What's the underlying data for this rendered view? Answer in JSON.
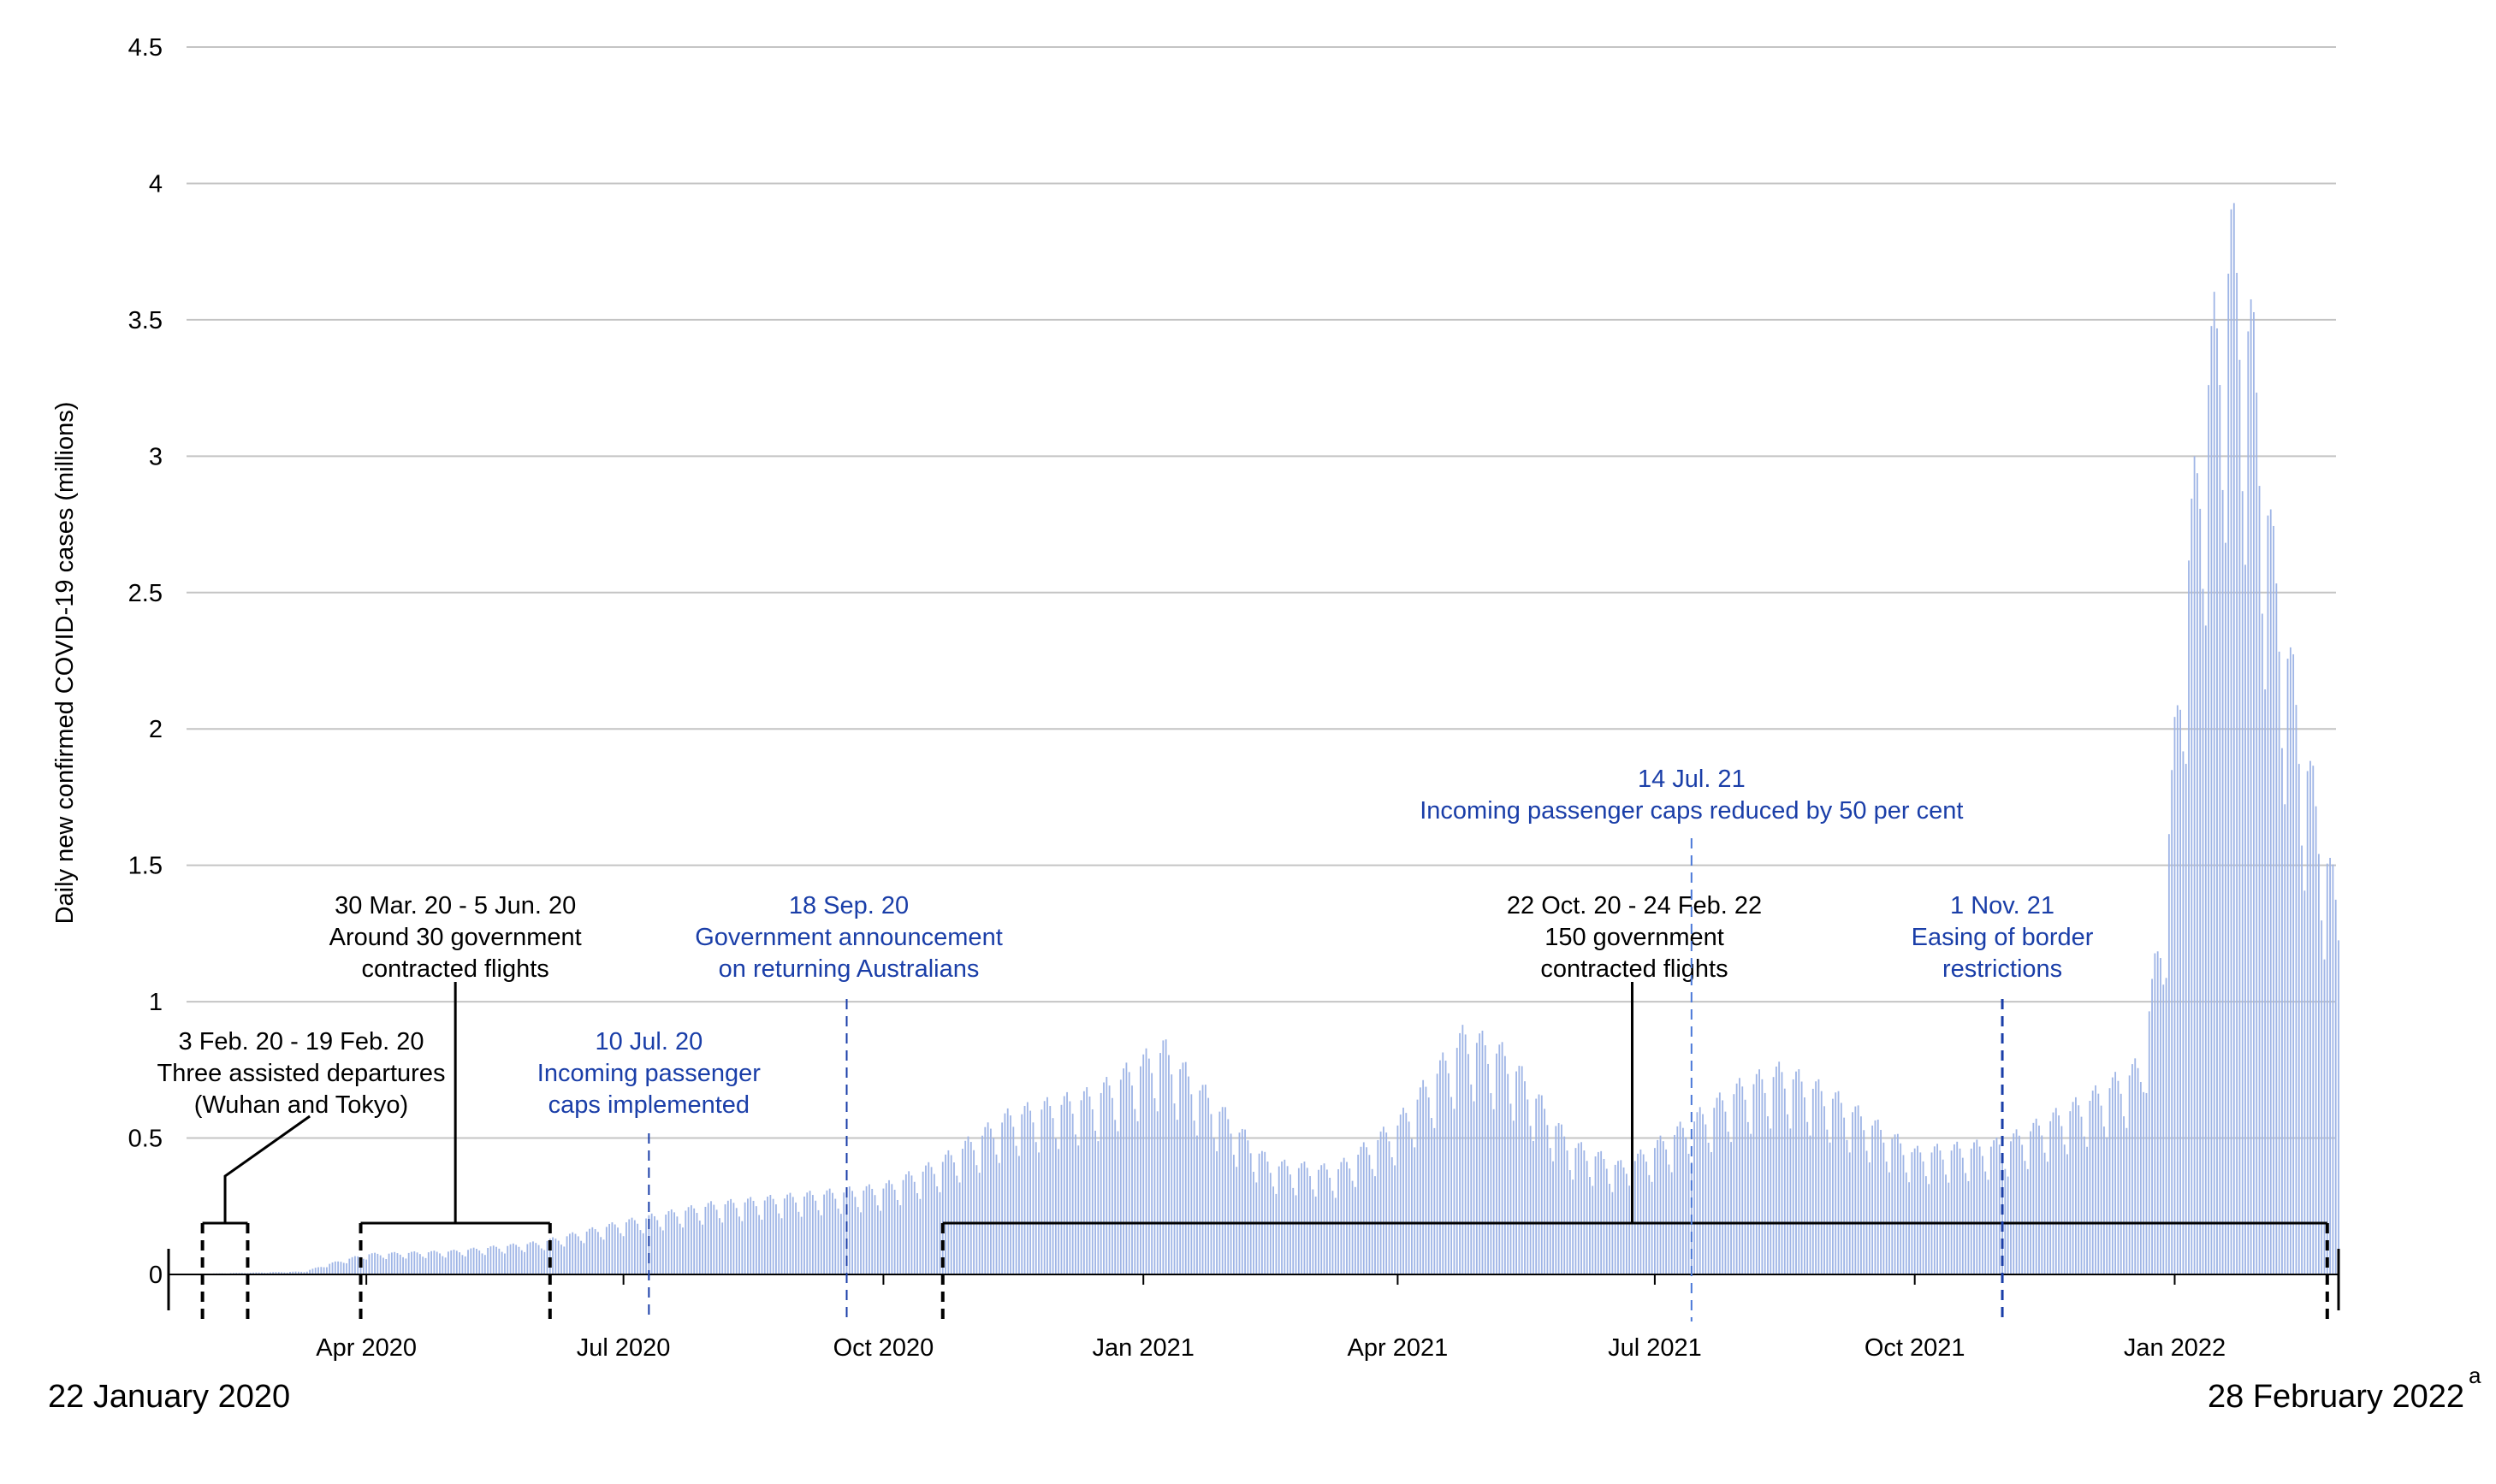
{
  "chart_data": {
    "type": "bar",
    "title": "",
    "ylabel": "Daily new confirmed COVID-19 cases (millions)",
    "xlabel": "",
    "ylim": [
      0,
      4.5
    ],
    "yticks": [
      0,
      0.5,
      1,
      1.5,
      2,
      2.5,
      3,
      3.5,
      4,
      4.5
    ],
    "ytick_labels": [
      "0",
      "0.5",
      "1",
      "1.5",
      "2",
      "2.5",
      "3",
      "3.5",
      "4",
      "4.5"
    ],
    "xrange": [
      "2020-01-22",
      "2022-02-28"
    ],
    "grid": "horizontal",
    "bar_color": "#9fb5e6",
    "xticks": [
      {
        "date": "2020-04-01",
        "label": "Apr 2020"
      },
      {
        "date": "2020-07-01",
        "label": "Jul 2020"
      },
      {
        "date": "2020-10-01",
        "label": "Oct 2020"
      },
      {
        "date": "2021-01-01",
        "label": "Jan 2021"
      },
      {
        "date": "2021-04-01",
        "label": "Apr 2021"
      },
      {
        "date": "2021-07-01",
        "label": "Jul 2021"
      },
      {
        "date": "2021-10-01",
        "label": "Oct 2021"
      },
      {
        "date": "2022-01-01",
        "label": "Jan 2022"
      }
    ],
    "trend": {
      "note_dates": [
        "2020-01-22",
        "2020-03-10",
        "2020-03-20",
        "2020-04-01",
        "2020-05-01",
        "2020-06-01",
        "2020-07-01",
        "2020-08-01",
        "2020-09-01",
        "2020-10-01",
        "2020-10-20",
        "2020-11-15",
        "2020-12-15",
        "2021-01-08",
        "2021-01-25",
        "2021-02-15",
        "2021-03-10",
        "2021-04-01",
        "2021-04-25",
        "2021-05-10",
        "2021-06-01",
        "2021-06-20",
        "2021-07-10",
        "2021-08-01",
        "2021-08-15",
        "2021-09-01",
        "2021-10-01",
        "2021-11-01",
        "2021-12-01",
        "2021-12-20",
        "2021-12-28",
        "2022-01-05",
        "2022-01-12",
        "2022-01-21",
        "2022-01-28",
        "2022-02-05",
        "2022-02-15",
        "2022-02-28"
      ],
      "note_values": [
        0,
        0.01,
        0.04,
        0.07,
        0.08,
        0.11,
        0.18,
        0.24,
        0.27,
        0.3,
        0.38,
        0.55,
        0.62,
        0.78,
        0.6,
        0.38,
        0.36,
        0.52,
        0.83,
        0.75,
        0.45,
        0.37,
        0.5,
        0.65,
        0.7,
        0.62,
        0.42,
        0.45,
        0.6,
        0.72,
        1.25,
        2.4,
        3.05,
        3.55,
        3.25,
        2.45,
        1.85,
        1.25
      ]
    },
    "annotations": [
      {
        "id": "assisted",
        "start": "2020-02-03",
        "end": "2020-02-19",
        "color": "black",
        "lines": [
          "3 Feb. 20 - 19 Feb. 20",
          "Three assisted departures",
          "(Wuhan and Tokyo)"
        ]
      },
      {
        "id": "contracted30",
        "start": "2020-03-30",
        "end": "2020-06-05",
        "color": "black",
        "lines": [
          "30 Mar. 20 - 5 Jun. 20",
          "Around 30 government",
          "contracted flights"
        ]
      },
      {
        "id": "caps_impl",
        "date": "2020-07-10",
        "color": "blue",
        "lines": [
          "10 Jul. 20",
          "Incoming passenger",
          "caps implemented"
        ]
      },
      {
        "id": "gov_announce",
        "date": "2020-09-18",
        "color": "blue",
        "lines": [
          "18 Sep. 20",
          "Government announcement",
          "on returning Australians"
        ]
      },
      {
        "id": "contracted150",
        "start": "2020-10-22",
        "end": "2022-02-24",
        "color": "black",
        "lines": [
          "22 Oct. 20 - 24 Feb. 22",
          "150 government",
          "contracted flights"
        ]
      },
      {
        "id": "caps_reduced",
        "date": "2021-07-14",
        "color": "blue",
        "lines": [
          "14 Jul. 21",
          "Incoming passenger caps reduced by 50 per cent"
        ]
      },
      {
        "id": "easing",
        "date": "2021-11-01",
        "color": "blue",
        "lines": [
          "1 Nov. 21",
          "Easing of border",
          "restrictions"
        ]
      }
    ],
    "start_label": "22 January 2020",
    "end_label": "28 February 2022",
    "end_label_footnote": "a"
  }
}
